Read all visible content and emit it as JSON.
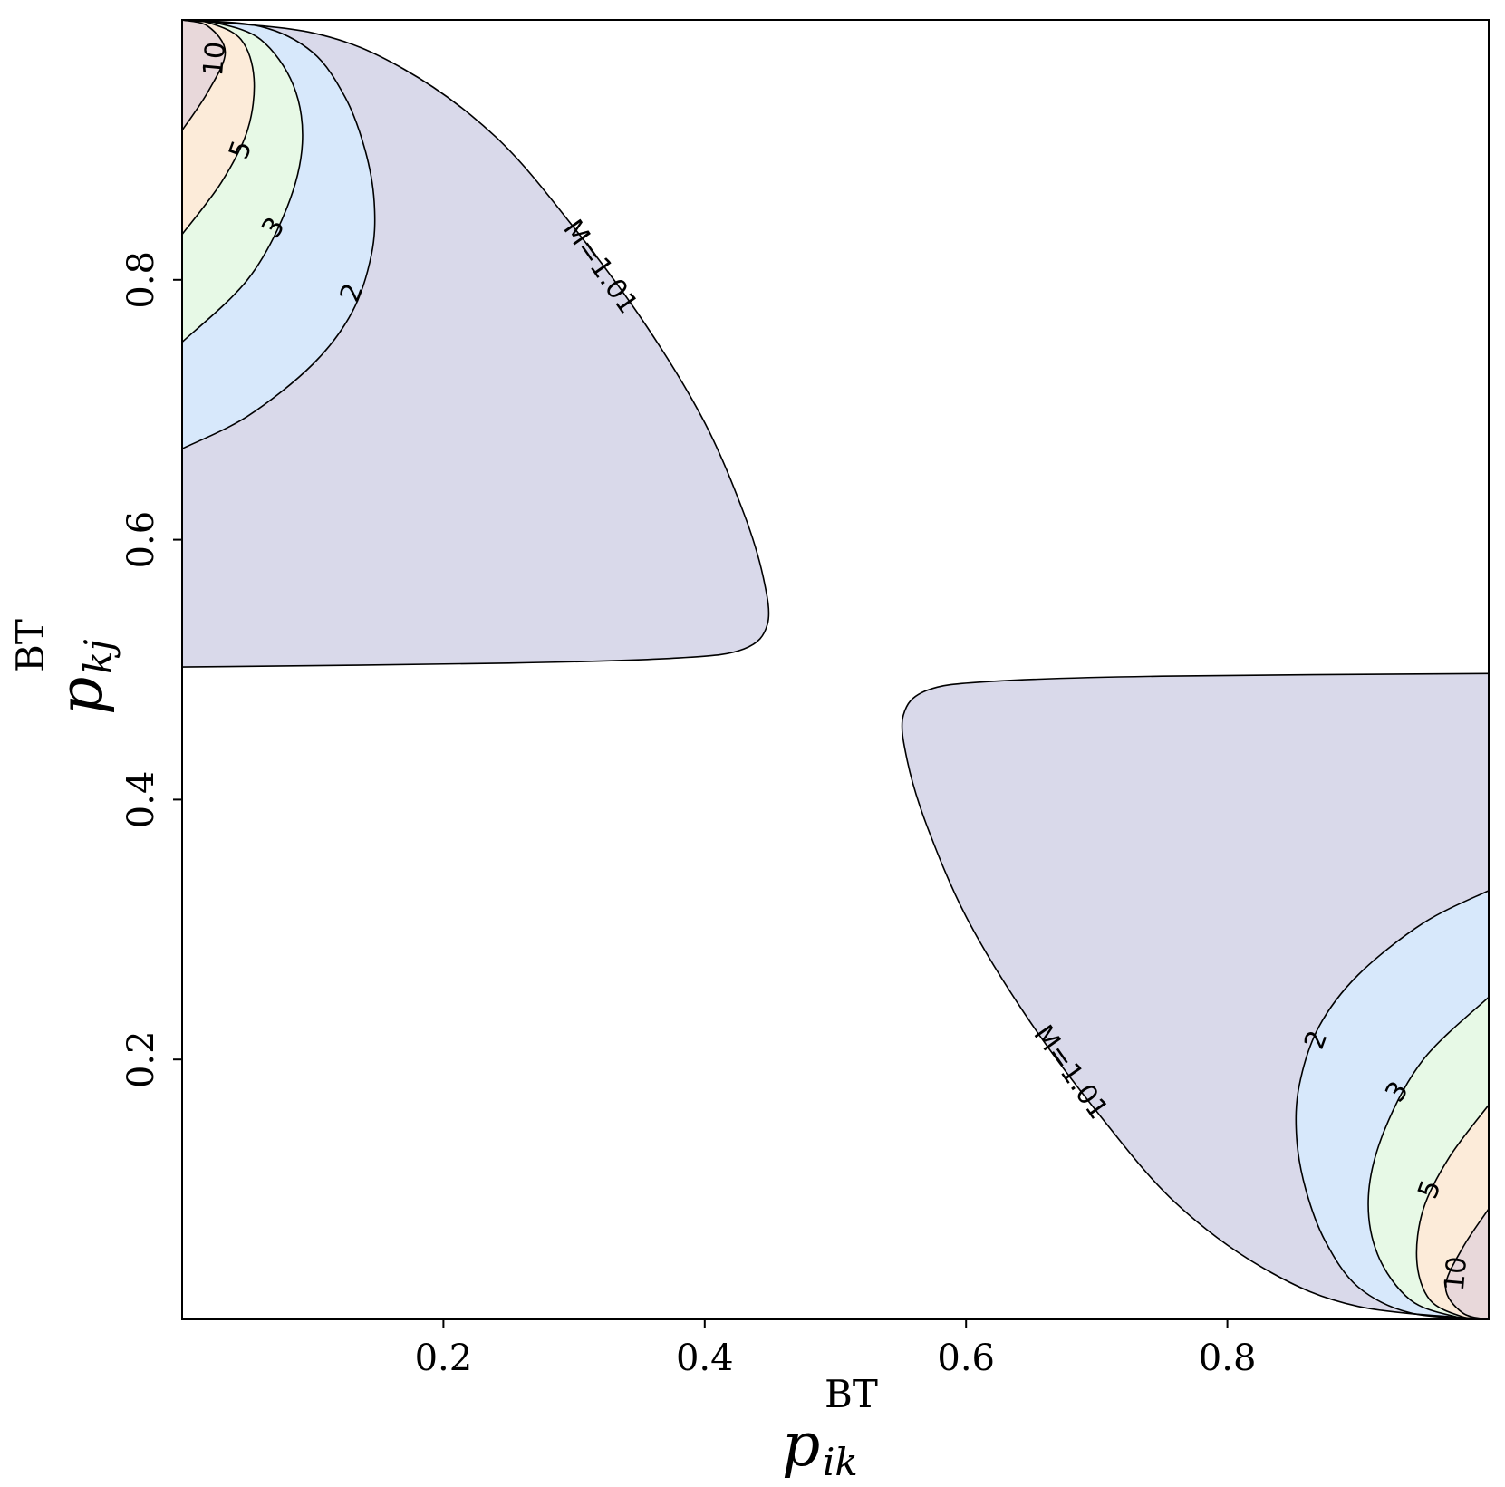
{
  "chart_data": {
    "type": "contour",
    "xlabel": {
      "base": "p",
      "sup": "BT",
      "sub": "ik"
    },
    "ylabel": {
      "base": "p",
      "sup": "BT",
      "sub": "kj"
    },
    "xlim": [
      0.0,
      1.0
    ],
    "ylim": [
      0.0,
      1.0
    ],
    "xticks": [
      "0.2",
      "0.4",
      "0.6",
      "0.8"
    ],
    "xtick_values": [
      0.2,
      0.4,
      0.6,
      0.8
    ],
    "yticks": [
      "0.2",
      "0.4",
      "0.6",
      "0.8"
    ],
    "ytick_values": [
      0.2,
      0.4,
      0.6,
      0.8
    ],
    "grid": false,
    "levels": [
      {
        "value": 1.01,
        "label": "M=1.01",
        "color": "#d9d9ea"
      },
      {
        "value": 2,
        "label": "2",
        "color": "#d7e8fb"
      },
      {
        "value": 3,
        "label": "3",
        "color": "#e7f9e6"
      },
      {
        "value": 5,
        "label": "5",
        "color": "#fcebd9"
      },
      {
        "value": 10,
        "label": "10",
        "color": "#e8d8da"
      }
    ],
    "regions": [
      {
        "name": "upper-left",
        "contours": [
          {
            "level": 1.01,
            "points": [
              [
                0.0,
                0.502
              ],
              [
                0.25,
                0.505
              ],
              [
                0.38,
                0.509
              ],
              [
                0.43,
                0.516
              ],
              [
                0.448,
                0.535
              ],
              [
                0.445,
                0.57
              ],
              [
                0.43,
                0.62
              ],
              [
                0.4,
                0.69
              ],
              [
                0.355,
                0.765
              ],
              [
                0.3,
                0.84
              ],
              [
                0.24,
                0.91
              ],
              [
                0.17,
                0.962
              ],
              [
                0.1,
                0.99
              ],
              [
                0.0,
                1.0
              ]
            ]
          },
          {
            "level": 2,
            "points": [
              [
                0.0,
                0.67
              ],
              [
                0.05,
                0.695
              ],
              [
                0.1,
                0.735
              ],
              [
                0.13,
                0.775
              ],
              [
                0.145,
                0.82
              ],
              [
                0.147,
                0.86
              ],
              [
                0.14,
                0.9
              ],
              [
                0.125,
                0.94
              ],
              [
                0.1,
                0.975
              ],
              [
                0.06,
                0.995
              ],
              [
                0.0,
                1.0
              ]
            ]
          },
          {
            "level": 3,
            "points": [
              [
                0.0,
                0.752
              ],
              [
                0.05,
                0.8
              ],
              [
                0.08,
                0.855
              ],
              [
                0.092,
                0.905
              ],
              [
                0.085,
                0.95
              ],
              [
                0.06,
                0.985
              ],
              [
                0.025,
                0.998
              ],
              [
                0.0,
                1.0
              ]
            ]
          },
          {
            "level": 5,
            "points": [
              [
                0.0,
                0.835
              ],
              [
                0.03,
                0.875
              ],
              [
                0.05,
                0.915
              ],
              [
                0.055,
                0.955
              ],
              [
                0.045,
                0.985
              ],
              [
                0.02,
                0.998
              ],
              [
                0.0,
                1.0
              ]
            ]
          },
          {
            "level": 10,
            "points": [
              [
                0.0,
                0.915
              ],
              [
                0.02,
                0.945
              ],
              [
                0.033,
                0.975
              ],
              [
                0.02,
                0.995
              ],
              [
                0.0,
                1.0
              ]
            ]
          }
        ]
      },
      {
        "name": "lower-right",
        "contours": [
          {
            "level": 1.01,
            "points": [
              [
                1.0,
                0.497
              ],
              [
                0.75,
                0.495
              ],
              [
                0.62,
                0.491
              ],
              [
                0.57,
                0.484
              ],
              [
                0.552,
                0.465
              ],
              [
                0.555,
                0.43
              ],
              [
                0.57,
                0.38
              ],
              [
                0.6,
                0.31
              ],
              [
                0.645,
                0.235
              ],
              [
                0.7,
                0.16
              ],
              [
                0.76,
                0.09
              ],
              [
                0.83,
                0.038
              ],
              [
                0.9,
                0.01
              ],
              [
                1.0,
                0.0
              ]
            ]
          },
          {
            "level": 2,
            "points": [
              [
                1.0,
                0.33
              ],
              [
                0.95,
                0.305
              ],
              [
                0.9,
                0.265
              ],
              [
                0.87,
                0.225
              ],
              [
                0.855,
                0.18
              ],
              [
                0.853,
                0.14
              ],
              [
                0.86,
                0.1
              ],
              [
                0.875,
                0.06
              ],
              [
                0.9,
                0.025
              ],
              [
                0.94,
                0.005
              ],
              [
                1.0,
                0.0
              ]
            ]
          },
          {
            "level": 3,
            "points": [
              [
                1.0,
                0.248
              ],
              [
                0.95,
                0.2
              ],
              [
                0.92,
                0.145
              ],
              [
                0.908,
                0.095
              ],
              [
                0.915,
                0.05
              ],
              [
                0.94,
                0.015
              ],
              [
                0.975,
                0.002
              ],
              [
                1.0,
                0.0
              ]
            ]
          },
          {
            "level": 5,
            "points": [
              [
                1.0,
                0.165
              ],
              [
                0.97,
                0.125
              ],
              [
                0.95,
                0.085
              ],
              [
                0.945,
                0.045
              ],
              [
                0.955,
                0.015
              ],
              [
                0.98,
                0.002
              ],
              [
                1.0,
                0.0
              ]
            ]
          },
          {
            "level": 10,
            "points": [
              [
                1.0,
                0.085
              ],
              [
                0.98,
                0.055
              ],
              [
                0.967,
                0.025
              ],
              [
                0.98,
                0.005
              ],
              [
                1.0,
                0.0
              ]
            ]
          }
        ]
      }
    ],
    "inline_labels": [
      {
        "text": "M=1.01",
        "x": 0.32,
        "y": 0.81,
        "angle": 55
      },
      {
        "text": "2",
        "x": 0.13,
        "y": 0.79,
        "angle": -70
      },
      {
        "text": "3",
        "x": 0.07,
        "y": 0.84,
        "angle": -55
      },
      {
        "text": "5",
        "x": 0.045,
        "y": 0.9,
        "angle": -70
      },
      {
        "text": "10",
        "x": 0.025,
        "y": 0.97,
        "angle": -85
      },
      {
        "text": "M=1.01",
        "x": 0.68,
        "y": 0.19,
        "angle": 55
      },
      {
        "text": "2",
        "x": 0.868,
        "y": 0.215,
        "angle": -70
      },
      {
        "text": "3",
        "x": 0.93,
        "y": 0.175,
        "angle": -55
      },
      {
        "text": "5",
        "x": 0.955,
        "y": 0.1,
        "angle": -70
      },
      {
        "text": "10",
        "x": 0.975,
        "y": 0.035,
        "angle": -85
      }
    ]
  }
}
